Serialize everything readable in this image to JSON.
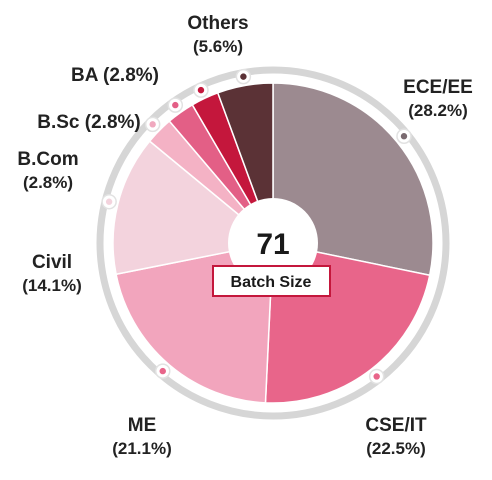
{
  "chart_data": {
    "type": "pie",
    "title": "",
    "categories": [
      "ECE/EE",
      "CSE/IT",
      "ME",
      "Civil",
      "B.Com",
      "B.Sc",
      "BA",
      "Others"
    ],
    "values": [
      28.2,
      22.5,
      21.1,
      14.1,
      2.8,
      2.8,
      2.8,
      5.6
    ],
    "percent_labels": [
      "(28.2%)",
      "(22.5%)",
      "(21.1%)",
      "(14.1%)",
      "(2.8%)",
      "(2.8%)",
      "(2.8%)",
      "(5.6%)"
    ],
    "colors": [
      "#9c8a90",
      "#e8658a",
      "#f2a5bd",
      "#f3d3dd",
      "#f4b2c5",
      "#e35f86",
      "#c4173c",
      "#5b3236"
    ],
    "center_value": "71",
    "center_label": "Batch Size"
  }
}
